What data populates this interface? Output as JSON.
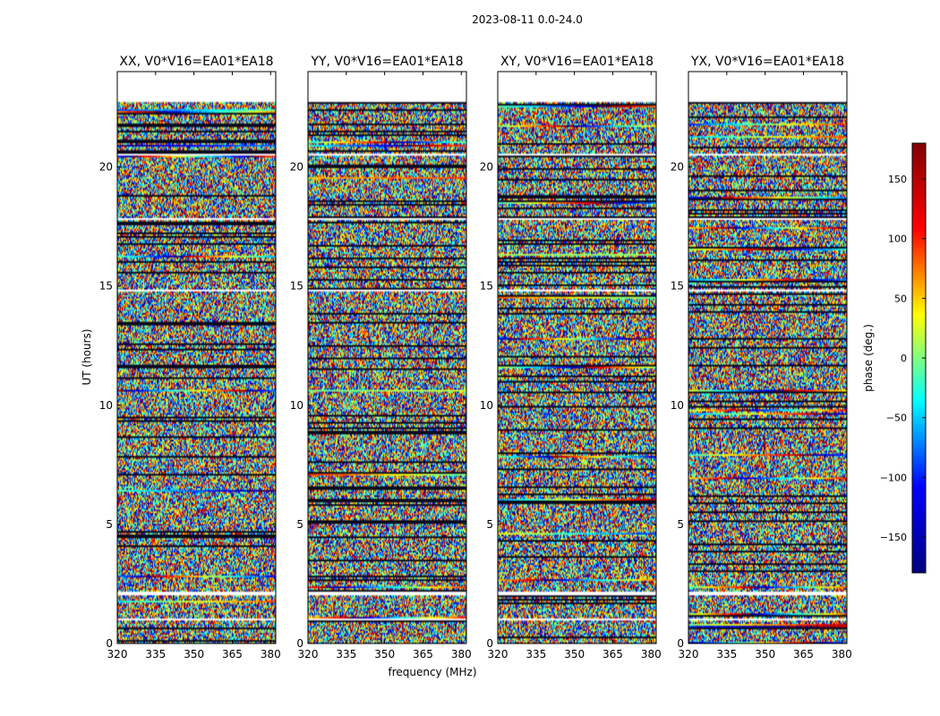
{
  "figure_title": "2023-08-11 0.0-24.0",
  "chart_data": {
    "type": "heatmap",
    "title": "2023-08-11 0.0-24.0",
    "xlabel": "frequency (MHz)",
    "ylabel": "UT (hours)",
    "xlim": [
      320,
      382
    ],
    "ylim": [
      0,
      24
    ],
    "xticks": [
      320,
      335,
      350,
      365,
      380
    ],
    "yticks": [
      0,
      5,
      10,
      15,
      20
    ],
    "panels": [
      {
        "title": "XX, V0*V16=EA01*EA18",
        "pol": "XX"
      },
      {
        "title": "YY, V0*V16=EA01*EA18",
        "pol": "YY"
      },
      {
        "title": "XY, V0*V16=EA01*EA18",
        "pol": "XY"
      },
      {
        "title": "YX, V0*V16=EA01*EA18",
        "pol": "YX"
      }
    ],
    "colorbar": {
      "label": "phase (deg.)",
      "range": [
        -180,
        180
      ],
      "ticks": [
        -150,
        -100,
        -50,
        0,
        50,
        100,
        150
      ],
      "colormap": "jet",
      "colormap_stops": [
        "#000080",
        "#0000ff",
        "#00ffff",
        "#ffff00",
        "#ff0000",
        "#800000"
      ]
    },
    "gaps_hours": [
      [
        0.95,
        1.05
      ],
      [
        2.05,
        2.15
      ],
      [
        14.75,
        14.85
      ],
      [
        17.75,
        17.85
      ],
      [
        20.45,
        20.55
      ],
      [
        22.7,
        24.0
      ]
    ]
  }
}
